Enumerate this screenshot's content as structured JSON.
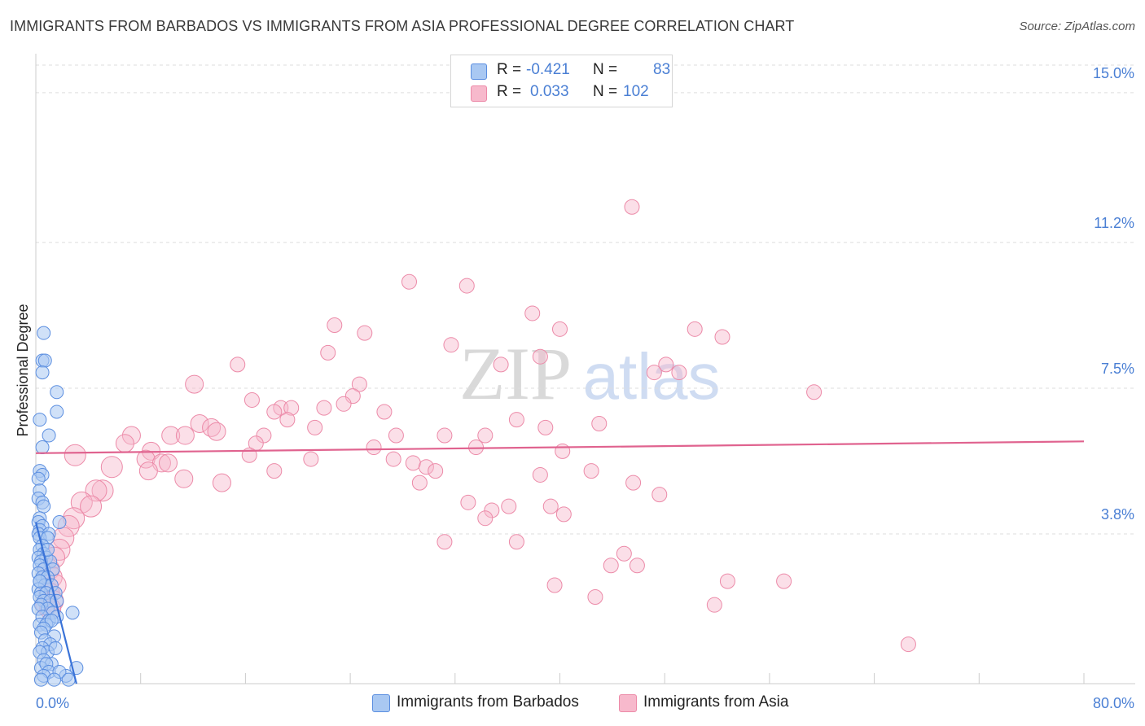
{
  "title": "IMMIGRANTS FROM BARBADOS VS IMMIGRANTS FROM ASIA PROFESSIONAL DEGREE CORRELATION CHART",
  "source": "Source: ZipAtlas.com",
  "watermark": {
    "zip": "ZIP",
    "atlas": "atlas"
  },
  "legend": {
    "barbados": {
      "r_label": "R =",
      "r_value": "-0.421",
      "n_label": "N =",
      "n_value": "83"
    },
    "asia": {
      "r_label": "R =",
      "r_value": "0.033",
      "n_label": "N =",
      "n_value": "102"
    }
  },
  "chart_data": {
    "type": "scatter",
    "title": "IMMIGRANTS FROM BARBADOS VS IMMIGRANTS FROM ASIA PROFESSIONAL DEGREE CORRELATION CHART",
    "ylabel": "Professional Degree",
    "xlabel": "",
    "xlim": [
      0,
      80
    ],
    "ylim": [
      0,
      15.7
    ],
    "x_tick_labels": {
      "min": "0.0%",
      "max": "80.0%"
    },
    "y_ticks": [
      {
        "value": 3.8,
        "label": "3.8%"
      },
      {
        "value": 7.5,
        "label": "7.5%"
      },
      {
        "value": 11.2,
        "label": "11.2%"
      },
      {
        "value": 15.0,
        "label": "15.0%"
      }
    ],
    "colors": {
      "barbados_fill": "#a9c8f2",
      "barbados_stroke": "#5b8ee0",
      "barbados_line": "#3a73d8",
      "asia_fill": "#f7b9cc",
      "asia_stroke": "#ec8aa8",
      "asia_line": "#e0638f"
    },
    "series": [
      {
        "name": "Immigrants from Barbados",
        "trend": {
          "x1": 0.0,
          "y1": 4.1,
          "x2": 3.1,
          "y2": 0.0
        },
        "points": [
          [
            0.6,
            8.9
          ],
          [
            0.5,
            8.2
          ],
          [
            0.7,
            8.2
          ],
          [
            0.5,
            7.9
          ],
          [
            1.6,
            7.4
          ],
          [
            1.6,
            6.9
          ],
          [
            0.3,
            6.7
          ],
          [
            1.0,
            6.3
          ],
          [
            0.5,
            6.0
          ],
          [
            0.3,
            5.4
          ],
          [
            0.5,
            5.3
          ],
          [
            0.2,
            5.2
          ],
          [
            0.3,
            4.9
          ],
          [
            0.2,
            4.7
          ],
          [
            0.5,
            4.6
          ],
          [
            0.6,
            4.5
          ],
          [
            0.3,
            4.2
          ],
          [
            0.2,
            4.1
          ],
          [
            1.8,
            4.1
          ],
          [
            0.5,
            4.0
          ],
          [
            0.3,
            3.9
          ],
          [
            0.2,
            3.8
          ],
          [
            1.0,
            3.8
          ],
          [
            0.3,
            3.7
          ],
          [
            0.9,
            3.7
          ],
          [
            0.5,
            3.5
          ],
          [
            0.3,
            3.4
          ],
          [
            0.6,
            3.3
          ],
          [
            0.2,
            3.2
          ],
          [
            0.8,
            3.2
          ],
          [
            0.4,
            3.1
          ],
          [
            1.1,
            3.1
          ],
          [
            0.3,
            3.0
          ],
          [
            0.6,
            2.9
          ],
          [
            1.3,
            2.9
          ],
          [
            0.2,
            2.8
          ],
          [
            0.5,
            2.7
          ],
          [
            0.9,
            2.7
          ],
          [
            0.3,
            2.6
          ],
          [
            0.7,
            2.5
          ],
          [
            1.2,
            2.5
          ],
          [
            0.2,
            2.4
          ],
          [
            0.4,
            2.3
          ],
          [
            0.8,
            2.3
          ],
          [
            1.5,
            2.3
          ],
          [
            0.3,
            2.2
          ],
          [
            0.6,
            2.1
          ],
          [
            1.1,
            2.1
          ],
          [
            1.6,
            2.1
          ],
          [
            0.4,
            2.0
          ],
          [
            0.9,
            1.9
          ],
          [
            0.2,
            1.9
          ],
          [
            1.3,
            1.8
          ],
          [
            2.8,
            1.8
          ],
          [
            0.5,
            1.7
          ],
          [
            1.0,
            1.6
          ],
          [
            1.6,
            1.7
          ],
          [
            0.3,
            1.5
          ],
          [
            0.8,
            1.5
          ],
          [
            1.2,
            1.6
          ],
          [
            0.6,
            1.4
          ],
          [
            0.4,
            1.3
          ],
          [
            1.4,
            1.2
          ],
          [
            0.7,
            1.1
          ],
          [
            1.1,
            1.0
          ],
          [
            0.5,
            0.9
          ],
          [
            0.9,
            0.8
          ],
          [
            1.5,
            0.9
          ],
          [
            0.3,
            0.8
          ],
          [
            0.6,
            0.6
          ],
          [
            1.2,
            0.5
          ],
          [
            0.4,
            0.4
          ],
          [
            0.8,
            0.5
          ],
          [
            3.1,
            0.4
          ],
          [
            1.0,
            0.3
          ],
          [
            2.3,
            0.2
          ],
          [
            0.6,
            0.2
          ],
          [
            1.8,
            0.3
          ],
          [
            0.4,
            0.1
          ],
          [
            1.4,
            0.1
          ],
          [
            2.5,
            0.1
          ],
          [
            0.9,
            3.4
          ],
          [
            0.3,
            2.6
          ]
        ]
      },
      {
        "name": "Immigrants from Asia",
        "trend": {
          "x1": 0.0,
          "y1": 5.85,
          "x2": 80.0,
          "y2": 6.15
        },
        "points": [
          [
            45.5,
            12.1
          ],
          [
            28.5,
            10.2
          ],
          [
            32.9,
            10.1
          ],
          [
            37.9,
            9.4
          ],
          [
            22.8,
            9.1
          ],
          [
            40.0,
            9.0
          ],
          [
            50.3,
            9.0
          ],
          [
            25.1,
            8.9
          ],
          [
            52.4,
            8.8
          ],
          [
            31.7,
            8.6
          ],
          [
            22.3,
            8.4
          ],
          [
            38.5,
            8.3
          ],
          [
            15.4,
            8.1
          ],
          [
            35.5,
            8.1
          ],
          [
            48.1,
            8.1
          ],
          [
            47.2,
            7.9
          ],
          [
            49.1,
            7.9
          ],
          [
            12.1,
            7.6
          ],
          [
            24.7,
            7.6
          ],
          [
            59.4,
            7.4
          ],
          [
            24.2,
            7.3
          ],
          [
            16.5,
            7.2
          ],
          [
            23.5,
            7.1
          ],
          [
            18.7,
            7.0
          ],
          [
            19.5,
            7.0
          ],
          [
            22.0,
            7.0
          ],
          [
            18.2,
            6.9
          ],
          [
            26.6,
            6.9
          ],
          [
            19.2,
            6.7
          ],
          [
            36.7,
            6.7
          ],
          [
            12.5,
            6.6
          ],
          [
            13.4,
            6.5
          ],
          [
            21.3,
            6.5
          ],
          [
            38.9,
            6.5
          ],
          [
            43.0,
            6.6
          ],
          [
            13.8,
            6.4
          ],
          [
            10.3,
            6.3
          ],
          [
            11.4,
            6.3
          ],
          [
            17.4,
            6.3
          ],
          [
            27.5,
            6.3
          ],
          [
            31.2,
            6.3
          ],
          [
            34.3,
            6.3
          ],
          [
            7.3,
            6.3
          ],
          [
            6.8,
            6.1
          ],
          [
            16.8,
            6.1
          ],
          [
            25.8,
            6.0
          ],
          [
            33.6,
            6.0
          ],
          [
            8.8,
            5.9
          ],
          [
            40.2,
            5.9
          ],
          [
            3.0,
            5.8
          ],
          [
            8.4,
            5.7
          ],
          [
            16.3,
            5.8
          ],
          [
            21.0,
            5.7
          ],
          [
            27.3,
            5.7
          ],
          [
            28.8,
            5.6
          ],
          [
            29.8,
            5.5
          ],
          [
            9.6,
            5.6
          ],
          [
            10.1,
            5.6
          ],
          [
            30.5,
            5.4
          ],
          [
            5.8,
            5.5
          ],
          [
            18.2,
            5.4
          ],
          [
            42.4,
            5.4
          ],
          [
            8.6,
            5.4
          ],
          [
            38.5,
            5.3
          ],
          [
            11.3,
            5.2
          ],
          [
            14.2,
            5.1
          ],
          [
            45.6,
            5.1
          ],
          [
            29.3,
            5.1
          ],
          [
            5.1,
            4.9
          ],
          [
            4.6,
            4.9
          ],
          [
            47.6,
            4.8
          ],
          [
            33.0,
            4.6
          ],
          [
            34.8,
            4.4
          ],
          [
            36.1,
            4.5
          ],
          [
            39.3,
            4.5
          ],
          [
            3.5,
            4.6
          ],
          [
            4.2,
            4.5
          ],
          [
            34.3,
            4.2
          ],
          [
            40.3,
            4.3
          ],
          [
            2.9,
            4.2
          ],
          [
            2.5,
            4.0
          ],
          [
            2.1,
            3.7
          ],
          [
            31.2,
            3.6
          ],
          [
            36.7,
            3.6
          ],
          [
            1.8,
            3.4
          ],
          [
            1.4,
            3.2
          ],
          [
            44.9,
            3.3
          ],
          [
            43.9,
            3.0
          ],
          [
            45.9,
            3.0
          ],
          [
            1.0,
            2.9
          ],
          [
            1.2,
            2.7
          ],
          [
            52.8,
            2.6
          ],
          [
            57.1,
            2.6
          ],
          [
            1.5,
            2.5
          ],
          [
            39.6,
            2.5
          ],
          [
            1.0,
            2.3
          ],
          [
            42.7,
            2.2
          ],
          [
            1.3,
            2.1
          ],
          [
            51.8,
            2.0
          ],
          [
            0.8,
            2.0
          ],
          [
            1.1,
            1.9
          ],
          [
            66.6,
            1.0
          ]
        ]
      }
    ]
  },
  "bottom_legend": {
    "barbados": "Immigrants from Barbados",
    "asia": "Immigrants from Asia"
  }
}
